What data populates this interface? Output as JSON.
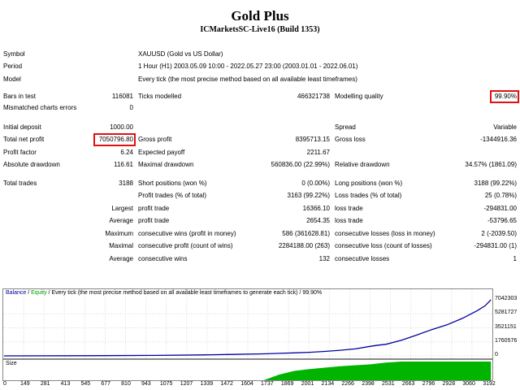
{
  "title": "Gold Plus",
  "subtitle": "ICMarketsSC-Live16 (Build 1353)",
  "info": {
    "symbol_label": "Symbol",
    "symbol_value": "XAUUSD (Gold vs US Dollar)",
    "period_label": "Period",
    "period_value": "1 Hour (H1) 2003.05.09 10:00 - 2022.05.27 23:00 (2003.01.01 - 2022.06.01)",
    "model_label": "Model",
    "model_value": "Every tick (the most precise method based on all available least timeframes)"
  },
  "stats": {
    "bars_label": "Bars in test",
    "bars_value": "116081",
    "ticks_label": "Ticks modelled",
    "ticks_value": "466321738",
    "quality_label": "Modelling quality",
    "quality_value": "99.90%",
    "mismatch_label": "Mismatched charts errors",
    "mismatch_value": "0",
    "deposit_label": "Initial deposit",
    "deposit_value": "1000.00",
    "spread_label": "Spread",
    "spread_value": "Variable",
    "netprofit_label": "Total net profit",
    "netprofit_value": "7050796.80",
    "grossprofit_label": "Gross profit",
    "grossprofit_value": "8395713.15",
    "grossloss_label": "Gross loss",
    "grossloss_value": "-1344916.36",
    "pf_label": "Profit factor",
    "pf_value": "6.24",
    "payoff_label": "Expected payoff",
    "payoff_value": "2211.67",
    "absdd_label": "Absolute drawdown",
    "absdd_value": "116.61",
    "maxdd_label": "Maximal drawdown",
    "maxdd_value": "560836.00 (22.99%)",
    "reldd_label": "Relative drawdown",
    "reldd_value": "34.57% (1861.09)",
    "trades_label": "Total trades",
    "trades_value": "3188",
    "short_label": "Short positions (won %)",
    "short_value": "0 (0.00%)",
    "long_label": "Long positions (won %)",
    "long_value": "3188 (99.22%)",
    "ptrades_label": "Profit trades (% of total)",
    "ptrades_value": "3163 (99.22%)",
    "ltrades_label": "Loss trades (% of total)",
    "ltrades_value": "25 (0.78%)",
    "largest_label": "Largest",
    "lp_label": "profit trade",
    "lp_value": "16366.10",
    "ll_label": "loss trade",
    "ll_value": "-294831.00",
    "average_label": "Average",
    "ap_label": "profit trade",
    "ap_value": "2654.35",
    "al_label": "loss trade",
    "al_value": "-53796.65",
    "maximum_label": "Maximum",
    "mcw_label": "consecutive wins (profit in money)",
    "mcw_value": "586 (361628.81)",
    "mcl_label": "consecutive losses (loss in money)",
    "mcl_value": "2 (-2039.50)",
    "maximal_label": "Maximal",
    "mcp_label": "consecutive profit (count of wins)",
    "mcp_value": "2284188.00 (263)",
    "mclo_label": "consecutive loss (count of losses)",
    "mclo_value": "-294831.00 (1)",
    "average2_label": "Average",
    "acw_label": "consecutive wins",
    "acw_value": "132",
    "acl_label": "consecutive losses",
    "acl_value": "1"
  },
  "chart": {
    "legend_balance": "Balance",
    "legend_sep1": " / ",
    "legend_equity": "Equity",
    "legend_rest": " / Every tick (the most precise method based on all available least timeframes to generate each tick) / 99.90%",
    "size_label": "Size",
    "colors": {
      "balance": "#0000a0",
      "equity": "#00a000",
      "size": "#00b400"
    },
    "yticks": [
      "7042303",
      "5281727",
      "3521151",
      "1760576",
      "0"
    ],
    "xticks": [
      "0",
      "149",
      "281",
      "413",
      "545",
      "677",
      "810",
      "943",
      "1075",
      "1207",
      "1339",
      "1472",
      "1604",
      "1737",
      "1869",
      "2001",
      "2134",
      "2266",
      "2398",
      "2531",
      "2663",
      "2796",
      "2928",
      "3060",
      "3192"
    ]
  },
  "chart_data": {
    "type": "line",
    "series": [
      {
        "name": "Balance",
        "x": [
          0,
          500,
          1000,
          1300,
          1500,
          1700,
          1800,
          1900,
          2000,
          2100,
          2200,
          2300,
          2400,
          2450,
          2500,
          2600,
          2700,
          2800,
          2900,
          3000,
          3100,
          3150,
          3188
        ],
        "values": [
          1000,
          20000,
          60000,
          120000,
          180000,
          260000,
          320000,
          380000,
          450000,
          560000,
          700000,
          880000,
          1200000,
          1350000,
          1450000,
          1950000,
          2600000,
          3300000,
          3900000,
          4700000,
          5700000,
          6300000,
          7050796
        ]
      }
    ],
    "size_series": {
      "x": [
        0,
        1700,
        1800,
        1900,
        2000,
        2200,
        2400,
        2500,
        2600,
        3188
      ],
      "values": [
        0,
        0,
        0.3,
        0.5,
        0.6,
        0.75,
        0.85,
        0.95,
        1,
        1
      ]
    },
    "ylim": [
      0,
      7042303
    ],
    "xlim": [
      0,
      3192
    ]
  }
}
